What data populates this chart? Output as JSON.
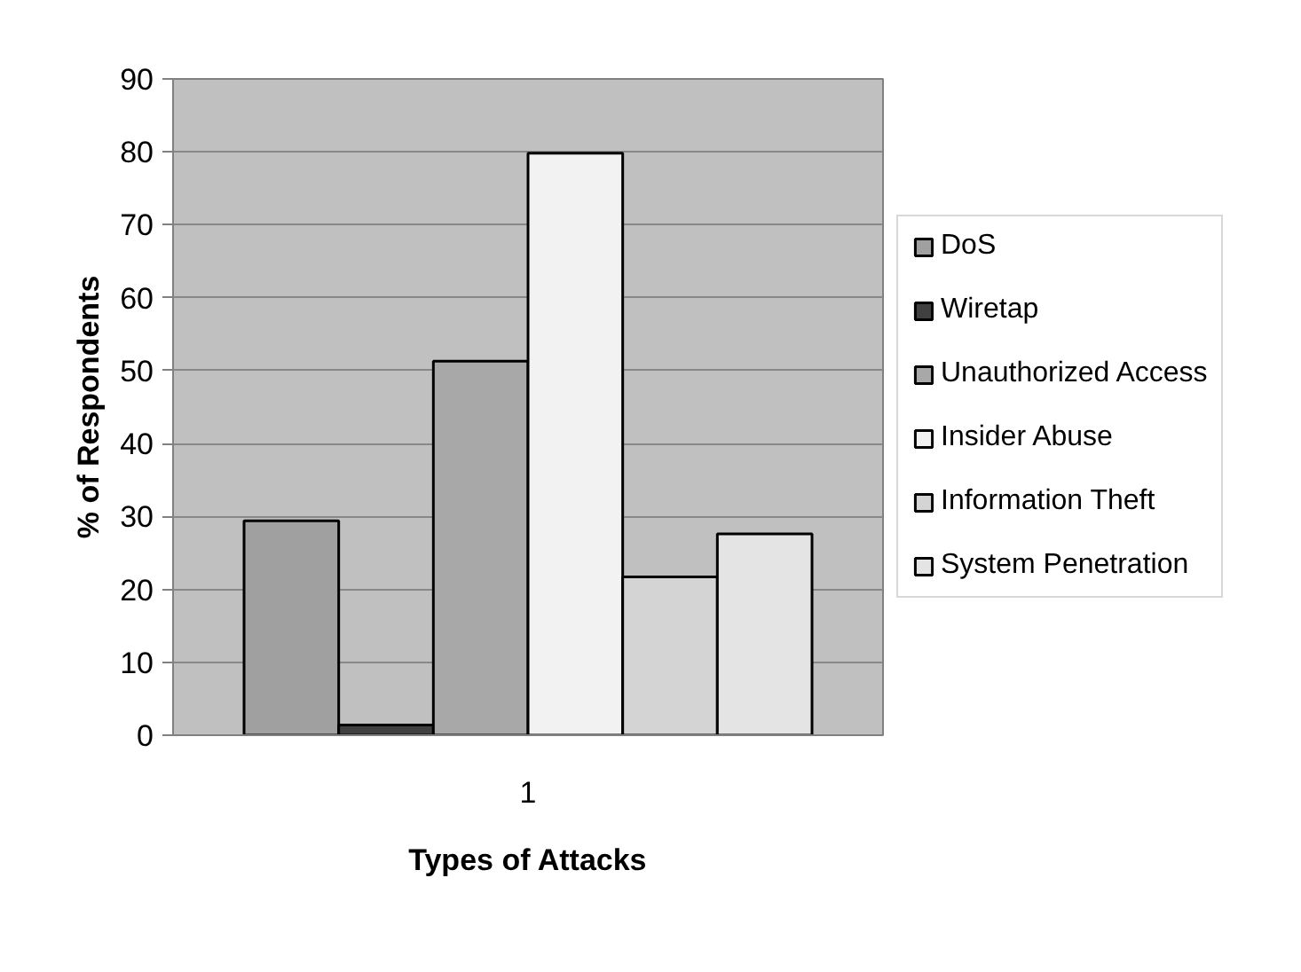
{
  "chart_data": {
    "type": "bar",
    "xlabel": "Types of Attacks",
    "ylabel": "% of Respondents",
    "categories": [
      "1"
    ],
    "series": [
      {
        "name": "DoS",
        "color": "#a0a0a0",
        "values": [
          29.4
        ]
      },
      {
        "name": "Wiretap",
        "color": "#404040",
        "values": [
          1.4
        ]
      },
      {
        "name": "Unauthorized Access",
        "color": "#a8a8a8",
        "values": [
          51.3
        ]
      },
      {
        "name": "Insider Abuse",
        "color": "#f2f2f2",
        "values": [
          79.8
        ]
      },
      {
        "name": "Information Theft",
        "color": "#d4d4d4",
        "values": [
          21.7
        ]
      },
      {
        "name": "System Penetration",
        "color": "#e4e4e4",
        "values": [
          27.6
        ]
      }
    ],
    "ylim": [
      0,
      90
    ],
    "yticks": [
      0,
      10,
      20,
      30,
      40,
      50,
      60,
      70,
      80,
      90
    ],
    "grid": "y",
    "legend": "right"
  }
}
